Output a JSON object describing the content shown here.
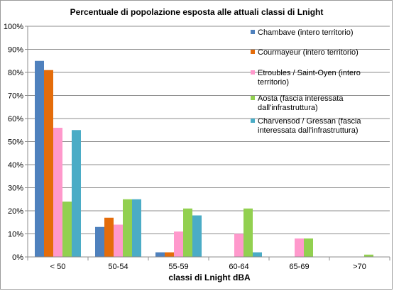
{
  "chart_data": {
    "type": "bar",
    "title": "Percentuale di popolazione esposta alle attuali classi di Lnight",
    "xlabel": "classi di Lnight dBA",
    "ylabel": "",
    "ylim": [
      0,
      100
    ],
    "y_ticks": [
      "0%",
      "10%",
      "20%",
      "30%",
      "40%",
      "50%",
      "60%",
      "70%",
      "80%",
      "90%",
      "100%"
    ],
    "categories": [
      "< 50",
      "50-54",
      "55-59",
      "60-64",
      "65-69",
      ">70"
    ],
    "legend_position": "top-right",
    "grid": "horizontal",
    "series": [
      {
        "name": "Chambave (intero territorio)",
        "legend_lines": [
          "Chambave (intero territorio)"
        ],
        "color": "#4F81BD",
        "values": [
          85,
          13,
          2,
          0,
          0,
          0
        ]
      },
      {
        "name": "Courmayeur (intero territorio)",
        "legend_lines": [
          "Courmayeur (intero territorio)"
        ],
        "color": "#E46C0A",
        "values": [
          81,
          17,
          2,
          0,
          0,
          0
        ]
      },
      {
        "name": "Etroubles / Saint-Oyen (intero territorio)",
        "legend_lines": [
          "Etroubles / Saint-Oyen (intero",
          "territorio)"
        ],
        "color": "#FF99CC",
        "values": [
          56,
          14,
          11,
          10,
          8,
          0
        ]
      },
      {
        "name": "Aosta (fascia interessata dall'infrastruttura)",
        "legend_lines": [
          "Aosta (fascia interessata",
          "dall'infrastruttura)"
        ],
        "color": "#92D050",
        "values": [
          24,
          25,
          21,
          21,
          8,
          1
        ]
      },
      {
        "name": "Charvensod / Gressan (fascia interessata dall'infrastruttura)",
        "legend_lines": [
          "Charvensod / Gressan (fascia",
          "interessata dall'infrastruttura)"
        ],
        "color": "#4BACC6",
        "values": [
          55,
          25,
          18,
          2,
          0,
          0
        ]
      }
    ]
  }
}
